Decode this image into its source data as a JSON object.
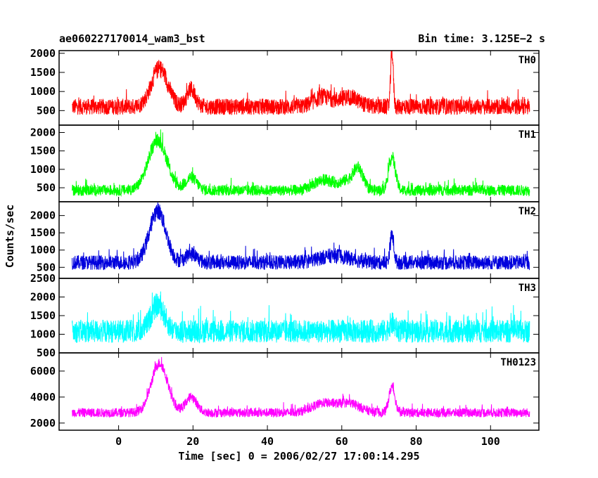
{
  "header": {
    "title": "ae060227170014_wam3_bst",
    "bin_time": "Bin time: 3.125E−2 s"
  },
  "chart_data": {
    "type": "line",
    "title": "ae060227170014_wam3_bst",
    "subtitle": "Bin time: 3.125E−2 s",
    "xlabel": "Time [sec] 0 = 2006/02/27 17:00:14.295",
    "ylabel": "Counts/sec",
    "xlim": [
      -16,
      113
    ],
    "xticks": [
      0,
      20,
      40,
      60,
      80,
      100
    ],
    "grid": false,
    "legend": "none",
    "panels": [
      {
        "name": "TH0",
        "color": "#ff0000",
        "ylim": [
          120,
          2070
        ],
        "yticks": [
          500,
          1000,
          1500,
          2000
        ],
        "baseline": 600,
        "noise": 420,
        "peaks": [
          {
            "t": 11,
            "amp": 1000,
            "width": 2.2
          },
          {
            "t": 19.5,
            "amp": 450,
            "width": 1.2
          },
          {
            "t": 55,
            "amp": 250,
            "width": 2.5
          },
          {
            "t": 62,
            "amp": 250,
            "width": 2.5
          },
          {
            "t": 73.5,
            "amp": 1450,
            "width": 0.35
          }
        ]
      },
      {
        "name": "TH1",
        "color": "#00ff00",
        "ylim": [
          120,
          2200
        ],
        "yticks": [
          500,
          1000,
          1500,
          2000
        ],
        "baseline": 430,
        "noise": 300,
        "peaks": [
          {
            "t": 10.5,
            "amp": 1350,
            "width": 2.5
          },
          {
            "t": 19.5,
            "amp": 350,
            "width": 1.5
          },
          {
            "t": 55,
            "amp": 280,
            "width": 2.5
          },
          {
            "t": 62,
            "amp": 280,
            "width": 2.5
          },
          {
            "t": 64.5,
            "amp": 450,
            "width": 1.2
          },
          {
            "t": 73.5,
            "amp": 900,
            "width": 0.9
          }
        ]
      },
      {
        "name": "TH2",
        "color": "#0000dd",
        "ylim": [
          180,
          2400
        ],
        "yticks": [
          500,
          1000,
          1500,
          2000
        ],
        "baseline": 640,
        "noise": 420,
        "peaks": [
          {
            "t": 10.5,
            "amp": 1500,
            "width": 2.2
          },
          {
            "t": 19.5,
            "amp": 250,
            "width": 1.5
          },
          {
            "t": 58,
            "amp": 200,
            "width": 4.0
          },
          {
            "t": 73.5,
            "amp": 800,
            "width": 0.5
          }
        ]
      },
      {
        "name": "TH3",
        "color": "#00ffff",
        "ylim": [
          500,
          2500
        ],
        "yticks": [
          500,
          1000,
          1500,
          2000,
          2500
        ],
        "baseline": 1080,
        "noise": 620,
        "peaks": [
          {
            "t": 10.5,
            "amp": 700,
            "width": 1.8
          },
          {
            "t": 73.5,
            "amp": 200,
            "width": 0.8
          }
        ]
      },
      {
        "name": "TH0123",
        "color": "#ff00ff",
        "ylim": [
          1450,
          7400
        ],
        "yticks": [
          2000,
          4000,
          6000
        ],
        "baseline": 2800,
        "noise": 700,
        "peaks": [
          {
            "t": 11,
            "amp": 3800,
            "width": 2.2
          },
          {
            "t": 19.5,
            "amp": 1200,
            "width": 1.5
          },
          {
            "t": 55,
            "amp": 700,
            "width": 3.0
          },
          {
            "t": 62,
            "amp": 700,
            "width": 3.0
          },
          {
            "t": 73.5,
            "amp": 2000,
            "width": 0.8
          }
        ]
      }
    ]
  }
}
